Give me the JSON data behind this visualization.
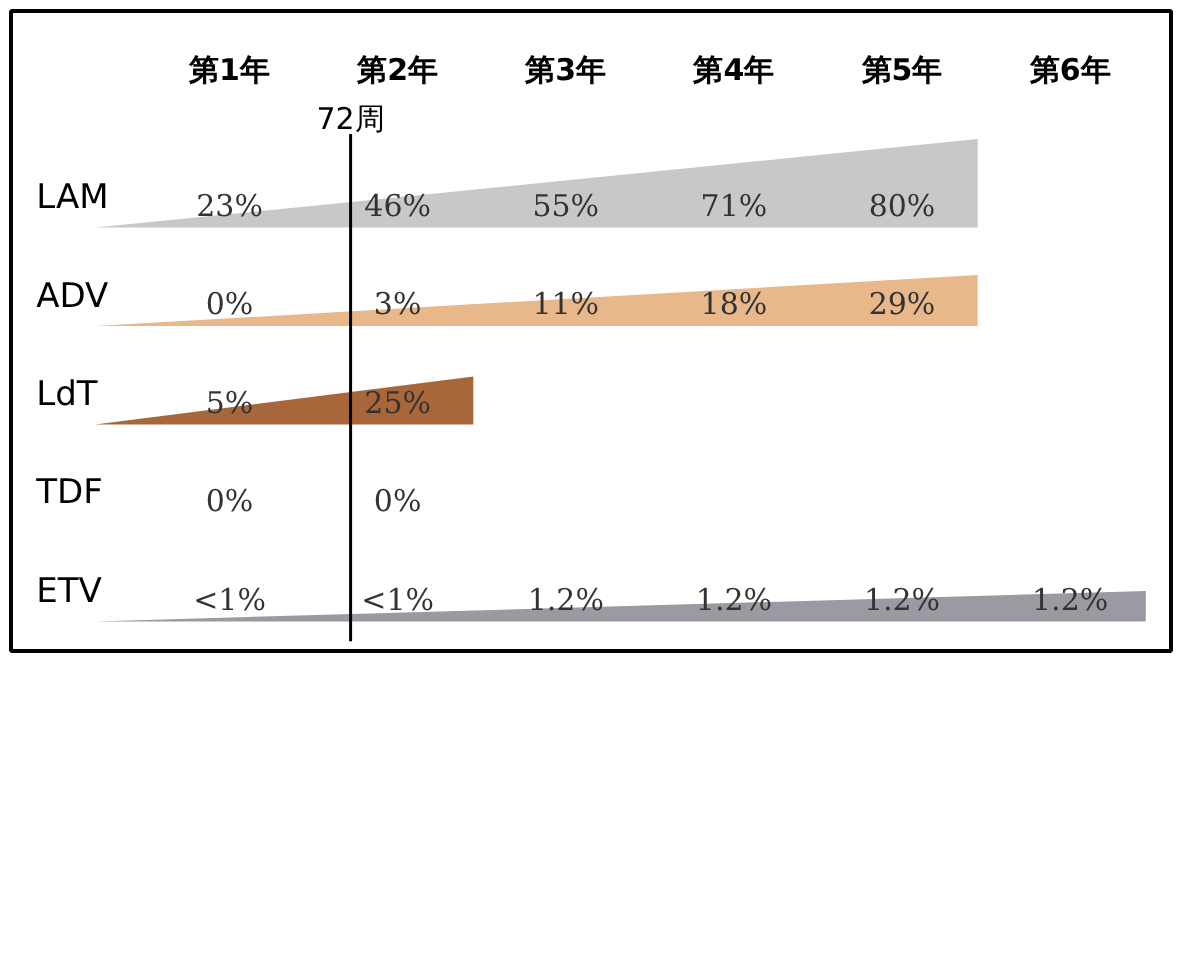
{
  "chart_data": {
    "type": "other",
    "categories": [
      "第1年",
      "第2年",
      "第3年",
      "第4年",
      "第5年",
      "第6年"
    ],
    "series": [
      {
        "name": "LAM",
        "color": "#c8c8c8",
        "values": [
          23,
          46,
          55,
          71,
          80,
          null
        ],
        "value_labels": [
          "23%",
          "46%",
          "55%",
          "71%",
          "80%",
          null
        ]
      },
      {
        "name": "ADV",
        "color": "#e8b88a",
        "values": [
          0,
          3,
          11,
          18,
          29,
          null
        ],
        "value_labels": [
          "0%",
          "3%",
          "11%",
          "18%",
          "29%",
          null
        ]
      },
      {
        "name": "LdT",
        "color": "#a8673a",
        "values": [
          5,
          25,
          null,
          null,
          null,
          null
        ],
        "value_labels": [
          "5%",
          "25%",
          null,
          null,
          null,
          null
        ]
      },
      {
        "name": "TDF",
        "values": [
          0,
          0,
          null,
          null,
          null,
          null
        ],
        "value_labels": [
          "0%",
          "0%",
          null,
          null,
          null,
          null
        ]
      },
      {
        "name": "ETV",
        "color": "#9a9aa2",
        "values": [
          null,
          null,
          1.2,
          1.2,
          1.2,
          1.2
        ],
        "value_labels": [
          "<1%",
          "<1%",
          "1.2%",
          "1.2%",
          "1.2%",
          "1.2%"
        ]
      }
    ],
    "annotations": [
      {
        "text": "72周",
        "x": "第2年"
      }
    ]
  }
}
